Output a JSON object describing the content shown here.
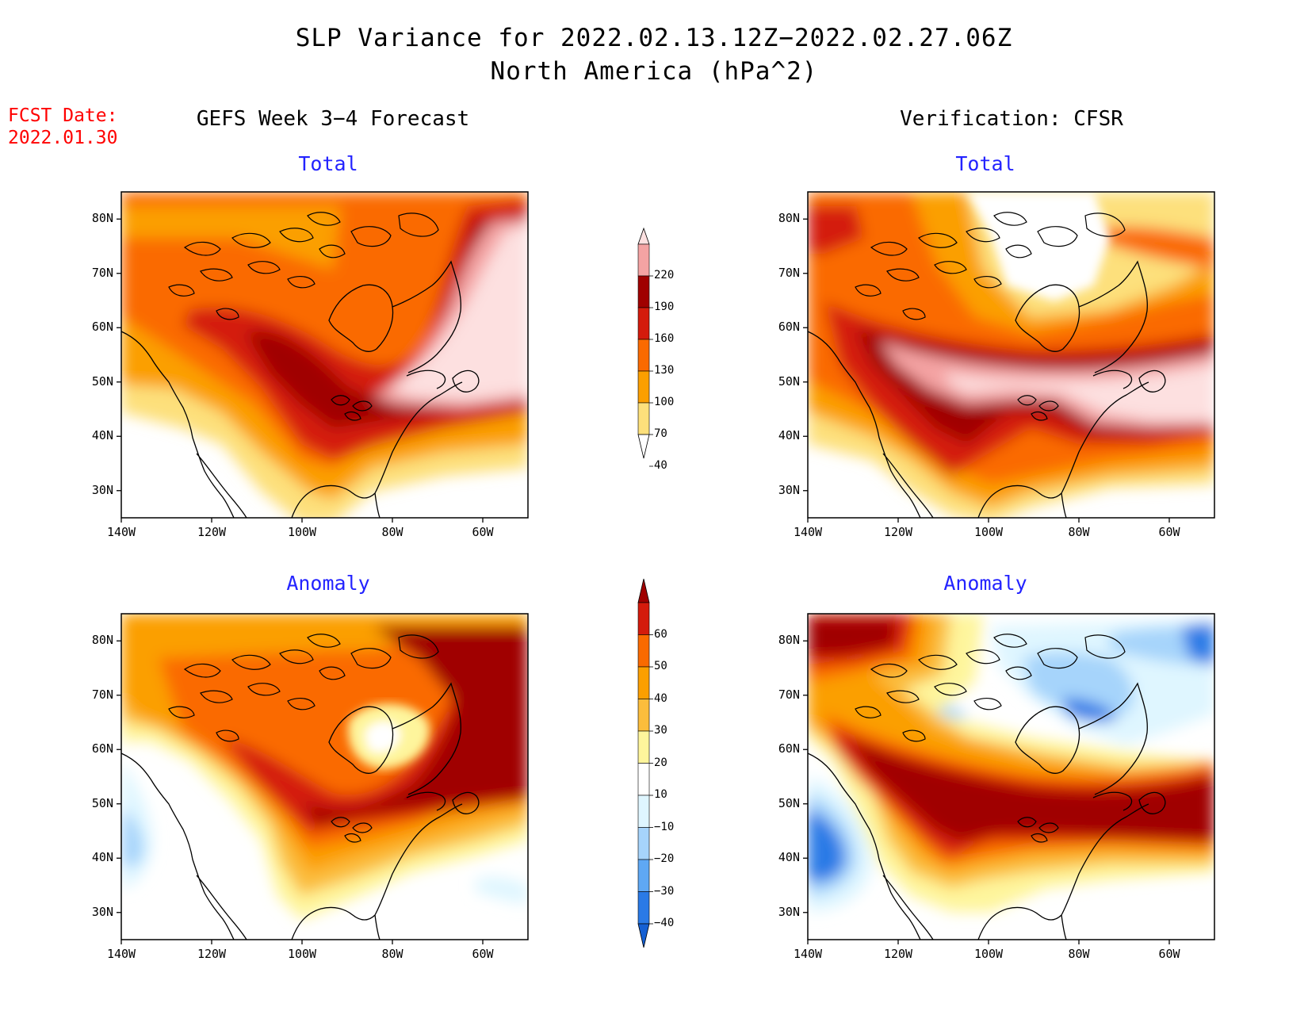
{
  "header": {
    "title_line1": "SLP Variance for 2022.02.13.12Z−2022.02.27.06Z",
    "title_line2": "North America (hPa^2)",
    "fcst_label": "FCST Date:",
    "fcst_date": "2022.01.30",
    "left_column": "GEFS Week 3−4 Forecast",
    "right_column": "Verification: CFSR"
  },
  "panels": [
    {
      "id": "gefs-total",
      "subtitle": "Total"
    },
    {
      "id": "cfsr-total",
      "subtitle": "Total"
    },
    {
      "id": "gefs-anomaly",
      "subtitle": "Anomaly"
    },
    {
      "id": "cfsr-anomaly",
      "subtitle": "Anomaly"
    }
  ],
  "axes": {
    "lat_ticks": [
      "80N",
      "70N",
      "60N",
      "50N",
      "40N",
      "30N"
    ],
    "lon_ticks": [
      "140W",
      "120W",
      "100W",
      "80W",
      "60W"
    ],
    "lon_range": [
      -140,
      -50
    ],
    "lat_range": [
      25,
      85
    ]
  },
  "colorbars": {
    "total": {
      "labels": [
        "220",
        "190",
        "160",
        "130",
        "100",
        "70",
        "40"
      ],
      "colors": [
        "#fde0e0",
        "#f4a3a3",
        "#a00000",
        "#d41b0c",
        "#fa6a00",
        "#fb9f00",
        "#fde07b",
        "#ffffff"
      ]
    },
    "anomaly": {
      "labels": [
        "60",
        "50",
        "40",
        "30",
        "20",
        "10",
        "−10",
        "−20",
        "−30",
        "−40"
      ],
      "colors": [
        "#a00000",
        "#d41b0c",
        "#fa6a00",
        "#fb9f00",
        "#fbbd3c",
        "#fef59c",
        "#ffffff",
        "#dff6ff",
        "#a6d4fb",
        "#5fa8f4",
        "#2a7ae6",
        "#1560d3"
      ]
    }
  },
  "chart_data": {
    "type": "heatmap",
    "title": "SLP Variance for 2022.02.13.12Z−2022.02.27.06Z North America (hPa^2)",
    "xlabel": "",
    "ylabel": "",
    "xlim": [
      -140,
      -50
    ],
    "ylim": [
      25,
      85
    ],
    "total_levels": [
      40,
      70,
      100,
      130,
      160,
      190,
      220
    ],
    "anomaly_levels": [
      -40,
      -30,
      -20,
      -10,
      10,
      20,
      30,
      40,
      50,
      60
    ]
  }
}
